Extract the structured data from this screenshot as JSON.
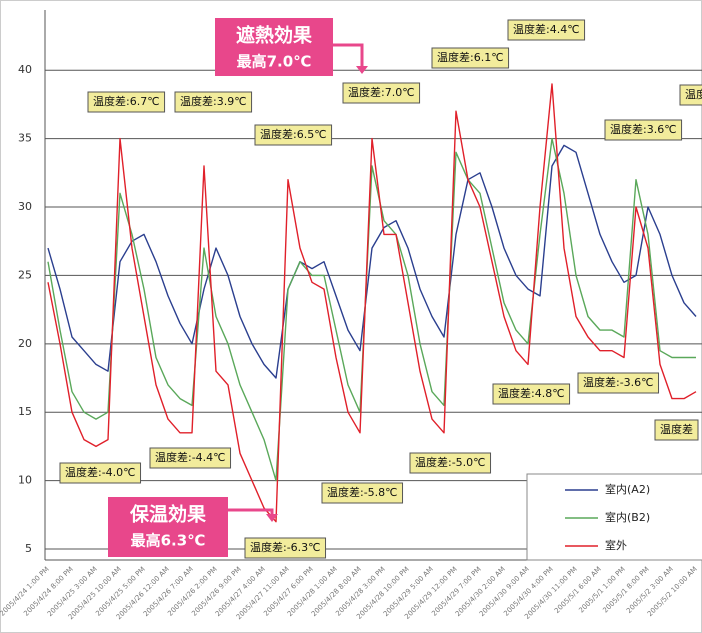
{
  "chart_data": {
    "type": "line",
    "categories": [
      "2005/4/24 1:00 PM",
      null,
      "2005/4/24 8:00 PM",
      null,
      "2005/4/25 3:00 AM",
      null,
      "2005/4/25 10:00 AM",
      null,
      "2005/4/25 5:00 PM",
      null,
      "2005/4/26 12:00 AM",
      null,
      "2005/4/26 7:00 AM",
      null,
      "2005/4/26 2:00 PM",
      null,
      "2005/4/26 9:00 PM",
      null,
      "2005/4/27 4:00 AM",
      null,
      "2005/4/27 11:00 AM",
      null,
      "2005/4/27 6:00 PM",
      null,
      "2005/4/28 1:00 AM",
      null,
      "2005/4/28 8:00 AM",
      null,
      "2005/4/28 3:00 PM",
      null,
      "2005/4/28 10:00 PM",
      null,
      "2005/4/29 5:00 AM",
      null,
      "2005/4/29 12:00 PM",
      null,
      "2005/4/29 7:00 PM",
      null,
      "2005/4/30 2:00 AM",
      null,
      "2005/4/30 9:00 AM",
      null,
      "2005/4/30 4:00 PM",
      null,
      "2005/4/30 11:00 PM",
      null,
      "2005/5/1 6:00 AM",
      null,
      "2005/5/1 1:00 PM",
      null,
      "2005/5/1 8:00 PM",
      null,
      "2005/5/2 3:00 AM",
      null,
      "2005/5/2 10:00 AM"
    ],
    "series": [
      {
        "name": "室内(A2)",
        "color": "#2b3f8f",
        "values": [
          27,
          24,
          20.5,
          19.5,
          18.5,
          18,
          26,
          27.5,
          28,
          26,
          23.5,
          21.5,
          20,
          24,
          27,
          25,
          22,
          20,
          18.5,
          17.5,
          24,
          26,
          25.5,
          26,
          23.5,
          21,
          19.5,
          27,
          28.5,
          29,
          27,
          24,
          22,
          20.5,
          28,
          32,
          32.5,
          30,
          27,
          25,
          24,
          23.5,
          33,
          34.5,
          34,
          31,
          28,
          26,
          24.5,
          25,
          30,
          28,
          25,
          23,
          22
        ]
      },
      {
        "name": "室内(B2)",
        "color": "#5aa85a",
        "values": [
          26,
          21,
          16.5,
          15,
          14.5,
          15,
          31,
          28,
          24,
          19,
          17,
          16,
          15.5,
          27,
          22,
          20,
          17,
          15,
          13,
          10,
          24,
          26,
          25,
          25,
          21,
          17,
          15,
          33,
          29,
          28,
          25,
          20,
          16.5,
          15.5,
          34,
          32,
          31,
          27,
          23,
          21,
          20,
          28,
          35,
          31,
          25,
          22,
          21,
          21,
          20.5,
          32,
          28,
          19.5,
          19,
          19,
          19
        ]
      },
      {
        "name": "室外",
        "color": "#e0202a",
        "values": [
          24.5,
          20,
          15,
          13,
          12.5,
          13,
          35,
          27,
          22,
          17,
          14.5,
          13.5,
          13.5,
          33,
          18,
          17,
          12,
          10,
          8,
          7,
          32,
          27,
          24.5,
          24,
          19,
          15,
          13.5,
          35,
          28,
          28,
          23,
          18,
          14.5,
          13.5,
          37,
          32,
          30,
          26,
          22,
          19.5,
          18.5,
          30,
          39,
          27,
          22,
          20.5,
          19.5,
          19.5,
          19,
          30,
          27,
          18.5,
          16,
          16,
          16.5
        ]
      }
    ],
    "ylim": [
      4.2,
      44.4
    ],
    "yticks": [
      5,
      10,
      15,
      20,
      25,
      30,
      35,
      40
    ],
    "grid": true,
    "annotations": [
      "温度差:6.7℃",
      "温度差:3.9℃",
      "温度差:6.5℃",
      "温度差:7.0℃",
      "温度差:6.1℃",
      "温度差:4.4℃",
      "温度差:3.6℃",
      "温度差",
      "温度差:-4.0℃",
      "温度差:-4.4℃",
      "温度差:-5.8℃",
      "温度差:-6.3℃",
      "温度差:-5.0℃",
      "温度差:4.8℃",
      "温度差:-3.6℃",
      "温度差"
    ],
    "callouts": [
      {
        "title": "遮熱効果",
        "text": "最高7.0℃"
      },
      {
        "title": "保温効果",
        "text": "最高6.3℃"
      }
    ]
  }
}
